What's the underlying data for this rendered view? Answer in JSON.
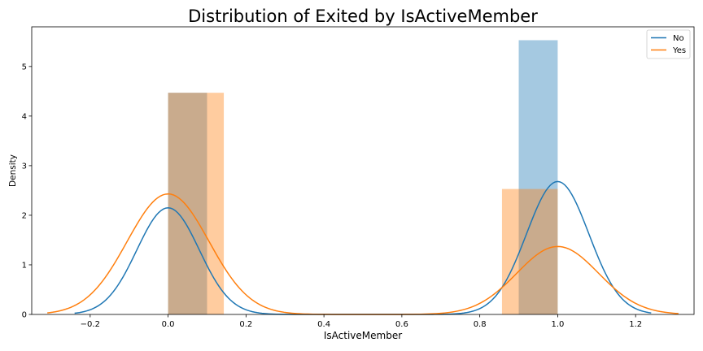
{
  "chart_data": {
    "type": "bar",
    "title": "Distribution of Exited by IsActiveMember",
    "xlabel": "IsActiveMember",
    "ylabel": "Density",
    "xlim": [
      -0.35,
      1.35
    ],
    "ylim": [
      0,
      5.8
    ],
    "xticks": [
      -0.2,
      0.0,
      0.2,
      0.4,
      0.6,
      0.8,
      1.0,
      1.2
    ],
    "xtick_labels": [
      "−0.2",
      "0.0",
      "0.2",
      "0.4",
      "0.6",
      "0.8",
      "1.0",
      "1.2"
    ],
    "yticks": [
      0,
      1,
      2,
      3,
      4,
      5
    ],
    "ytick_labels": [
      "0",
      "1",
      "2",
      "3",
      "4",
      "5"
    ],
    "grid": false,
    "legend_position": "top-right",
    "series": [
      {
        "name": "No",
        "color": "#1f77b4",
        "bar_opacity": 0.4,
        "histogram": [
          {
            "x0": 0.0,
            "x1": 0.1,
            "density": 4.47
          },
          {
            "x0": 0.9,
            "x1": 1.0,
            "density": 5.53
          }
        ],
        "kde": {
          "modes": [
            {
              "center": 0.0,
              "peak": 2.15,
              "sigma": 0.08
            },
            {
              "center": 1.0,
              "peak": 2.68,
              "sigma": 0.08
            }
          ],
          "x_range": [
            -0.24,
            1.24
          ]
        }
      },
      {
        "name": "Yes",
        "color": "#ff7f0e",
        "bar_opacity": 0.4,
        "histogram": [
          {
            "x0": 0.0,
            "x1": 0.143,
            "density": 4.47
          },
          {
            "x0": 0.857,
            "x1": 1.0,
            "density": 2.53
          }
        ],
        "kde": {
          "modes": [
            {
              "center": 0.0,
              "peak": 2.43,
              "sigma": 0.105
            },
            {
              "center": 1.0,
              "peak": 1.37,
              "sigma": 0.105
            }
          ],
          "x_range": [
            -0.31,
            1.31
          ]
        }
      }
    ]
  }
}
